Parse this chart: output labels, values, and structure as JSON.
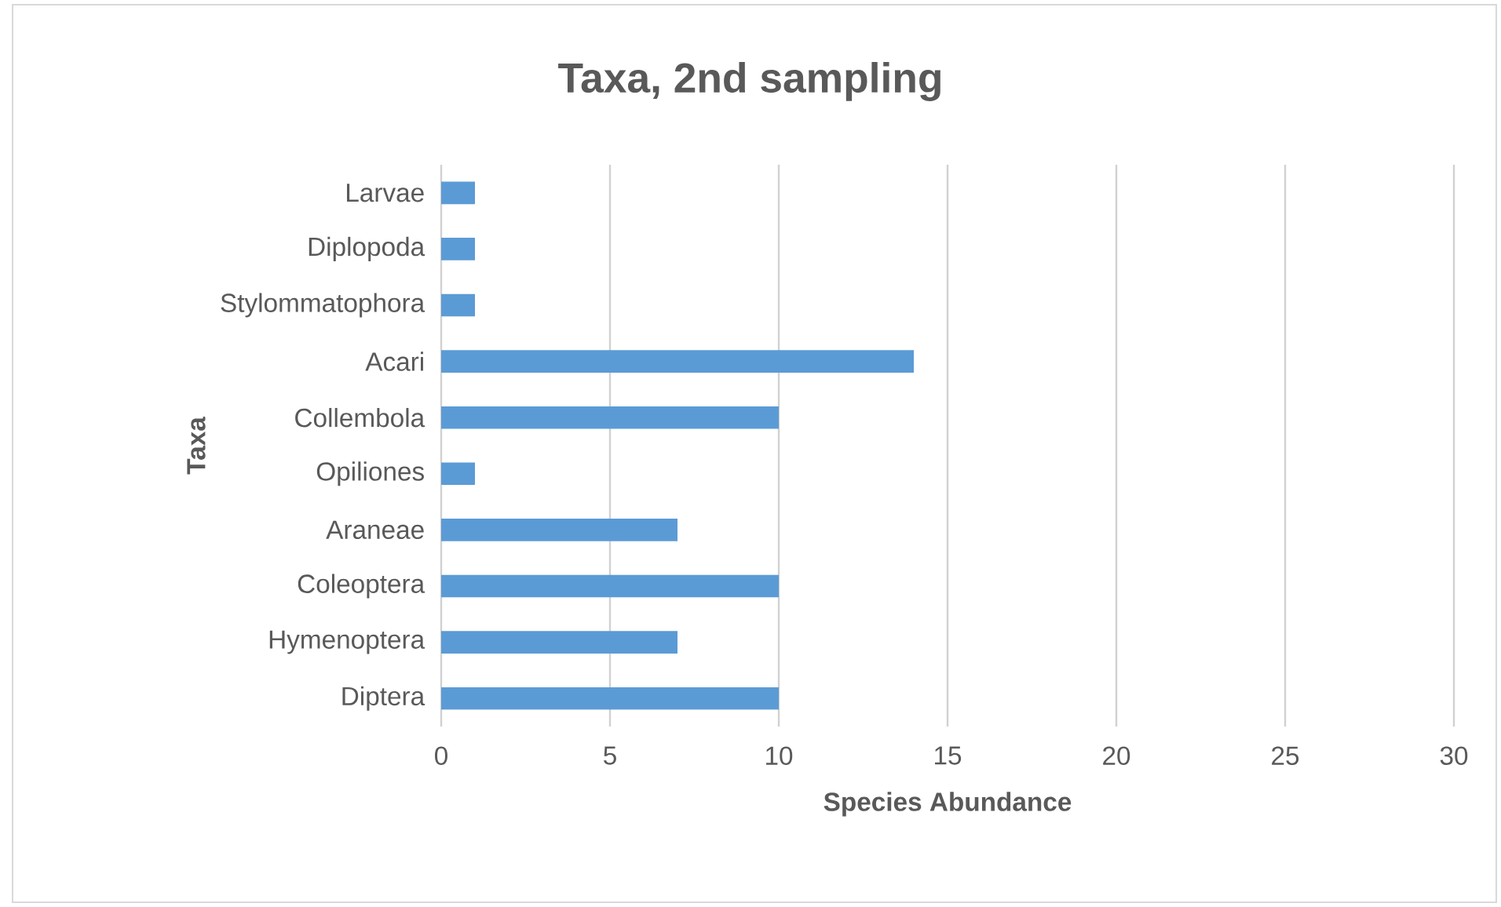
{
  "chart_data": {
    "type": "bar",
    "orientation": "horizontal",
    "title": "Taxa, 2nd sampling",
    "xlabel": "Species Abundance",
    "ylabel": "Taxa",
    "categories": [
      "Larvae",
      "Diplopoda",
      "Stylommatophora",
      "Acari",
      "Collembola",
      "Opiliones",
      "Araneae",
      "Coleoptera",
      "Hymenoptera",
      "Diptera"
    ],
    "values": [
      1,
      1,
      1,
      14,
      10,
      1,
      7,
      10,
      7,
      10
    ],
    "color": "#5b9bd5",
    "xlim": [
      0,
      30
    ],
    "xticks": [
      0,
      5,
      10,
      15,
      20,
      25,
      30
    ],
    "grid": "x"
  }
}
